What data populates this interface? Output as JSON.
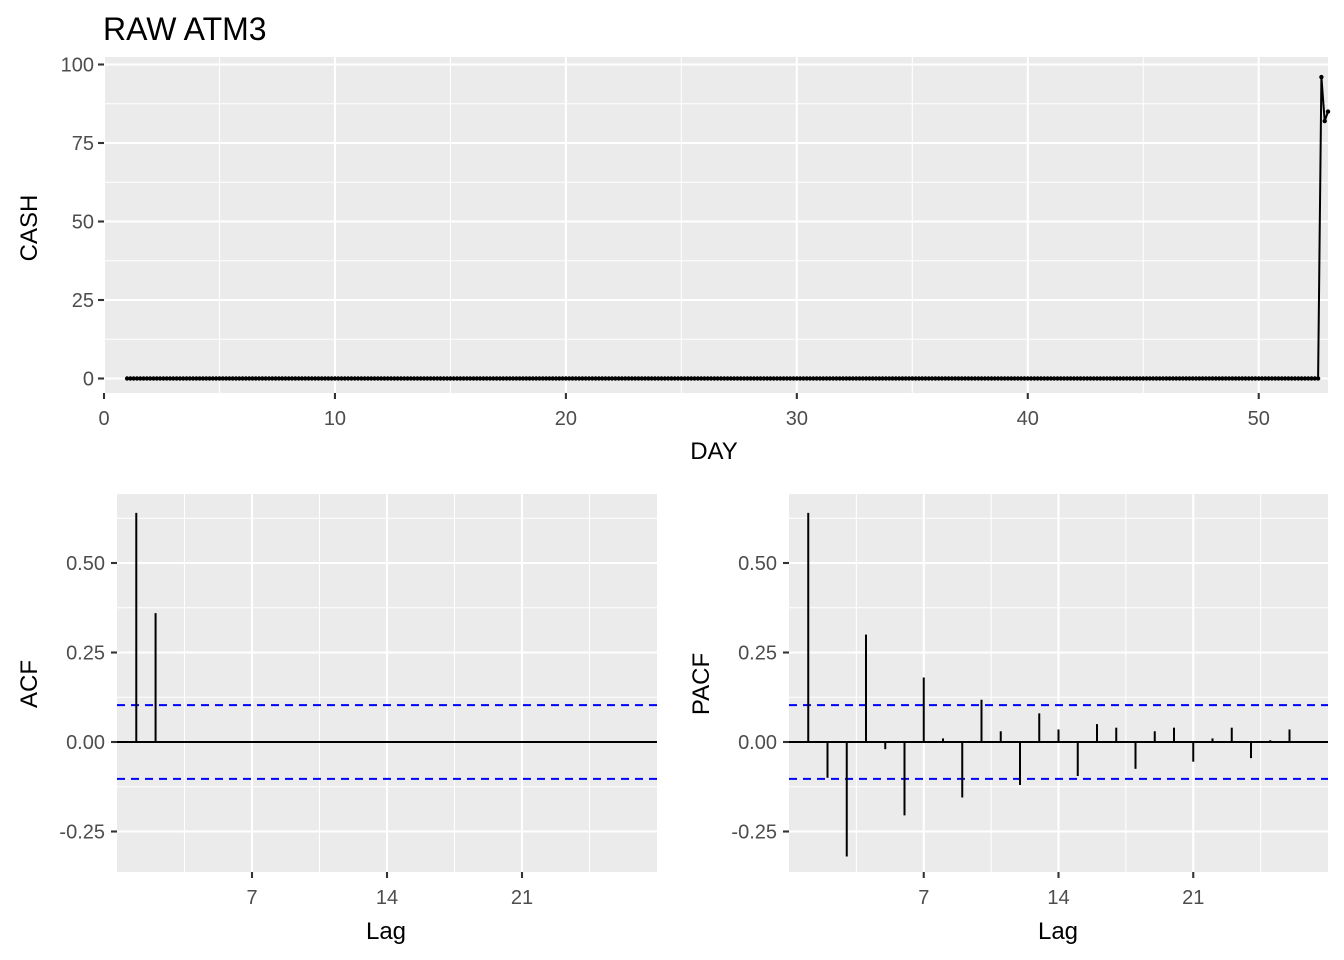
{
  "chart_data": [
    {
      "type": "line",
      "title": "RAW ATM3",
      "xlabel": "DAY",
      "ylabel": "CASH",
      "xlim": [
        0,
        53
      ],
      "ylim": [
        0,
        100
      ],
      "x_ticks": [
        "0",
        "10",
        "20",
        "30",
        "40",
        "50"
      ],
      "x_tick_values": [
        0,
        10,
        20,
        30,
        40,
        50
      ],
      "y_ticks": [
        "0",
        "25",
        "50",
        "75",
        "100"
      ],
      "y_tick_values": [
        0,
        25,
        50,
        75,
        100
      ],
      "grid": true,
      "series": [
        {
          "x_start": 1.0,
          "x_step": 0.142857,
          "zero_count": 362,
          "tail_x": [
            52.714,
            52.857,
            53.0
          ],
          "tail_y": [
            96,
            82,
            85
          ]
        }
      ]
    },
    {
      "type": "bar",
      "xlabel": "Lag",
      "ylabel": "ACF",
      "xlim": [
        0,
        28
      ],
      "ylim": [
        -0.36,
        0.66
      ],
      "x_ticks": [
        "7",
        "14",
        "21"
      ],
      "x_tick_values": [
        7,
        14,
        21
      ],
      "y_ticks": [
        "-0.25",
        "0.00",
        "0.25",
        "0.50"
      ],
      "y_tick_values": [
        -0.25,
        0,
        0.25,
        0.5
      ],
      "ci": 0.103,
      "grid": true,
      "lags": [
        1,
        2,
        3,
        4,
        5,
        6,
        7,
        8,
        9,
        10,
        11,
        12,
        13,
        14,
        15,
        16,
        17,
        18,
        19,
        20,
        21,
        22,
        23,
        24,
        25,
        26,
        27
      ],
      "values": [
        0.64,
        0.36,
        0,
        0,
        0,
        0,
        0,
        0,
        0,
        0,
        0,
        0,
        0,
        0,
        0,
        0,
        0,
        0,
        0,
        0,
        0,
        0,
        0,
        0,
        0,
        0,
        0
      ]
    },
    {
      "type": "bar",
      "xlabel": "Lag",
      "ylabel": "PACF",
      "xlim": [
        0,
        28
      ],
      "ylim": [
        -0.36,
        0.66
      ],
      "x_ticks": [
        "7",
        "14",
        "21"
      ],
      "x_tick_values": [
        7,
        14,
        21
      ],
      "y_ticks": [
        "-0.25",
        "0.00",
        "0.25",
        "0.50"
      ],
      "y_tick_values": [
        -0.25,
        0,
        0.25,
        0.5
      ],
      "ci": 0.103,
      "grid": true,
      "lags": [
        1,
        2,
        3,
        4,
        5,
        6,
        7,
        8,
        9,
        10,
        11,
        12,
        13,
        14,
        15,
        16,
        17,
        18,
        19,
        20,
        21,
        22,
        23,
        24,
        25,
        26,
        27
      ],
      "values": [
        0.64,
        -0.1,
        -0.32,
        0.3,
        -0.02,
        -0.205,
        0.18,
        0.01,
        -0.155,
        0.118,
        0.03,
        -0.12,
        0.08,
        0.035,
        -0.095,
        0.05,
        0.04,
        -0.075,
        0.03,
        0.04,
        -0.055,
        0.01,
        0.04,
        -0.045,
        0.005,
        0.035,
        0.0
      ]
    }
  ]
}
